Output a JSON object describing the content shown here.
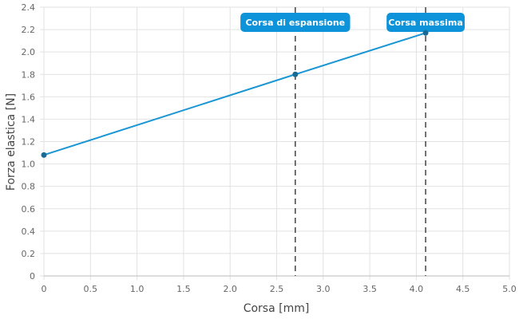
{
  "chart_data": {
    "type": "line",
    "xlabel": "Corsa [mm]",
    "ylabel": "Forza elastica [N]",
    "xlim": [
      0,
      5
    ],
    "ylim": [
      0,
      2.4
    ],
    "xticks": [
      "0",
      "0.5",
      "1.0",
      "1.5",
      "2.0",
      "2.5",
      "3.0",
      "3.5",
      "4.0",
      "4.5",
      "5.0"
    ],
    "yticks": [
      "0",
      "0.2",
      "0.4",
      "0.6",
      "0.8",
      "1.0",
      "1.2",
      "1.4",
      "1.6",
      "1.8",
      "2.0",
      "2.2",
      "2.4"
    ],
    "grid": true,
    "series": [
      {
        "x": [
          0,
          2.7,
          4.1
        ],
        "y": [
          1.08,
          1.8,
          2.17
        ],
        "color": "#1a96d4"
      }
    ],
    "annotations": [
      {
        "x": 2.7,
        "label": "Corsa di espansione"
      },
      {
        "x": 4.1,
        "label": "Corsa massima"
      }
    ],
    "annotation_color": "#0d93d9"
  }
}
